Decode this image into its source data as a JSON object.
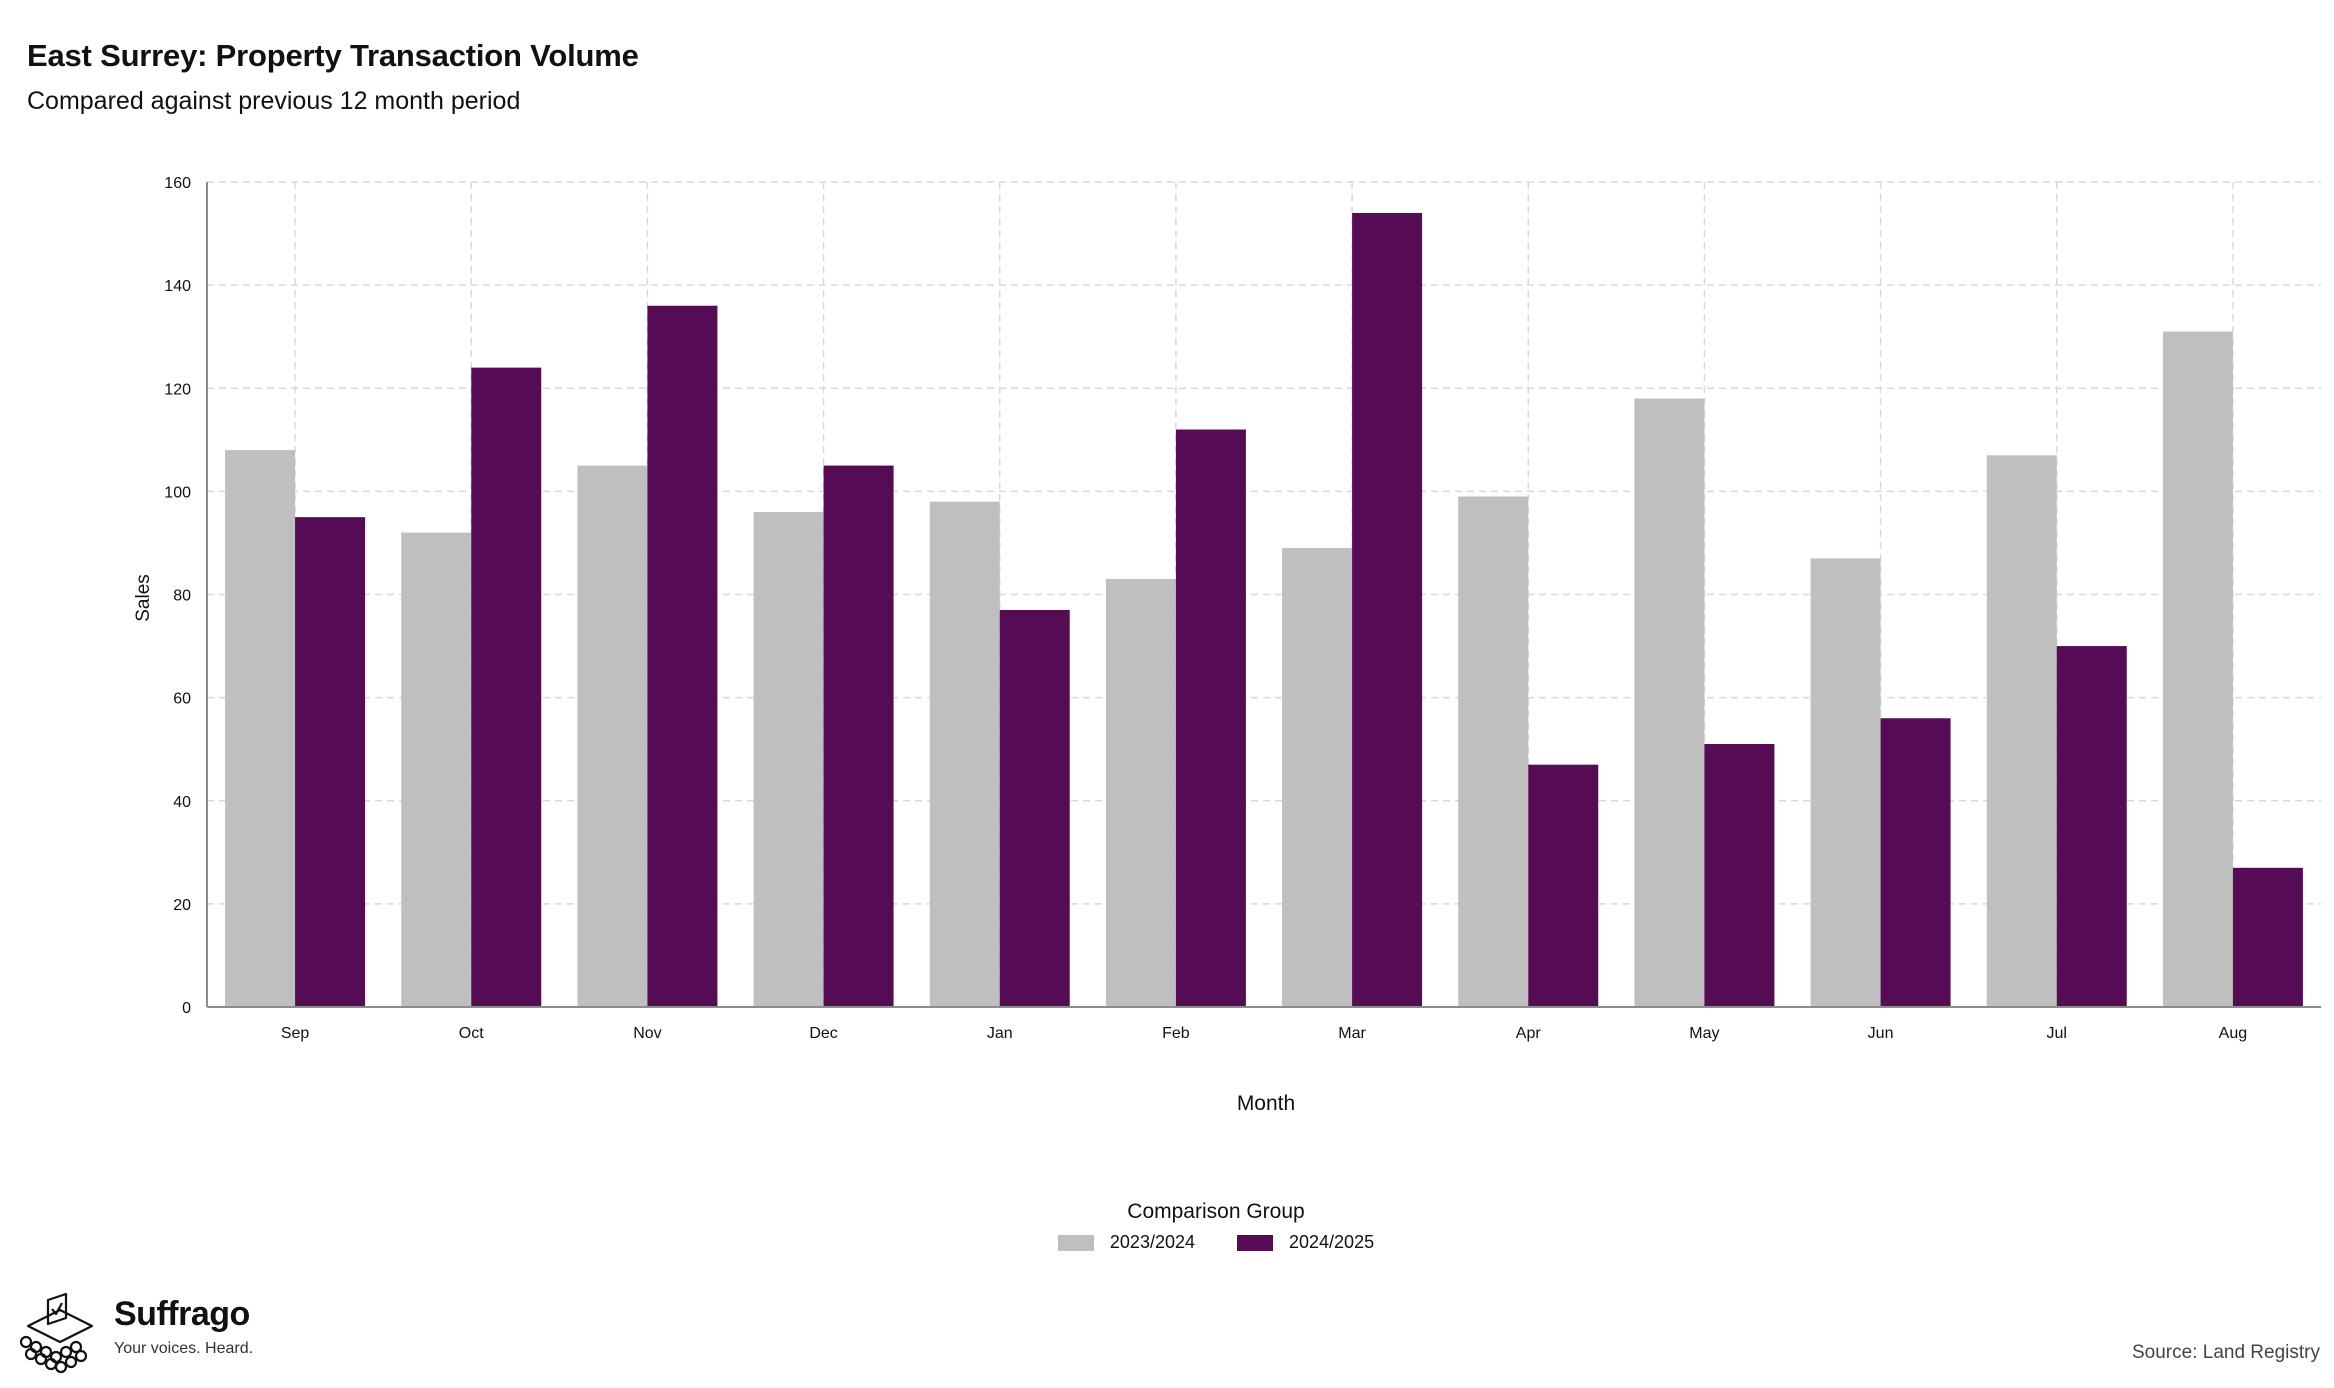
{
  "title": "East Surrey: Property Transaction Volume",
  "subtitle": "Compared against previous 12 month period",
  "source": "Source: Land Registry",
  "brand": {
    "name": "Suffrago",
    "tagline": "Your voices. Heard.",
    "icon": "ballot-box-crowd-icon"
  },
  "legend": {
    "title": "Comparison Group"
  },
  "colors": {
    "series_2023": "#bfbfbf",
    "series_2024": "#560c54",
    "grid": "#d9d9d9",
    "axis": "#8c8c8c"
  },
  "chart_data": {
    "type": "bar",
    "categories": [
      "Sep",
      "Oct",
      "Nov",
      "Dec",
      "Jan",
      "Feb",
      "Mar",
      "Apr",
      "May",
      "Jun",
      "Jul",
      "Aug"
    ],
    "series": [
      {
        "name": "2023/2024",
        "values": [
          108,
          92,
          105,
          96,
          98,
          83,
          89,
          99,
          118,
          87,
          107,
          131
        ]
      },
      {
        "name": "2024/2025",
        "values": [
          95,
          124,
          136,
          105,
          77,
          112,
          154,
          47,
          51,
          56,
          70,
          27
        ]
      }
    ],
    "xlabel": "Month",
    "ylabel": "Sales",
    "ylim": [
      0,
      160
    ],
    "yticks": [
      0,
      20,
      40,
      60,
      80,
      100,
      120,
      140,
      160
    ],
    "grid": true,
    "legend_position": "bottom"
  }
}
